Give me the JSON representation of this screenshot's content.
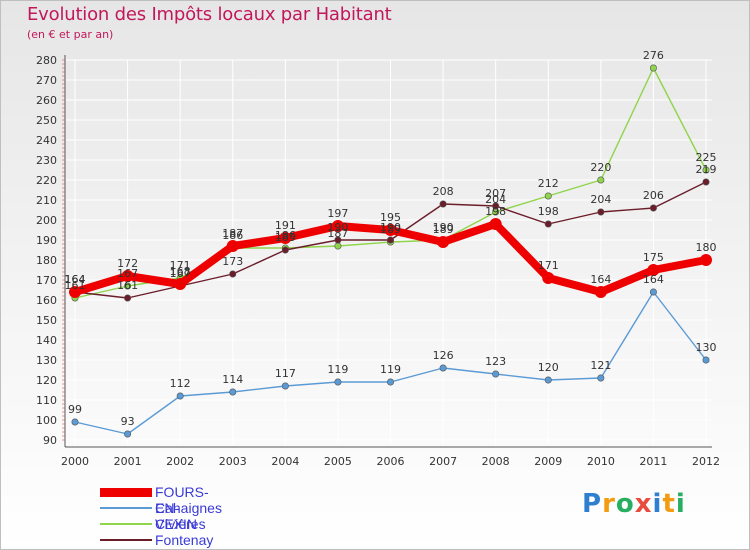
{
  "chart_data": {
    "type": "line",
    "title": "Evolution des Impôts locaux par Habitant",
    "subtitle": "(en € et par an)",
    "xlabel": "",
    "ylabel": "",
    "x": [
      "2000",
      "2001",
      "2002",
      "2003",
      "2004",
      "2005",
      "2006",
      "2007",
      "2008",
      "2009",
      "2010",
      "2011",
      "2012"
    ],
    "ylim": [
      90,
      280
    ],
    "yticks": [
      90,
      100,
      110,
      120,
      130,
      140,
      150,
      160,
      170,
      180,
      190,
      200,
      210,
      220,
      230,
      240,
      250,
      260,
      270,
      280
    ],
    "grid": true,
    "series": [
      {
        "name": "FOURS-EN-VEXIN",
        "color": "#ee0000",
        "values": [
          164,
          172,
          168,
          187,
          191,
          197,
          195,
          189,
          198,
          171,
          164,
          175,
          180
        ],
        "labels": [
          "164",
          "172",
          "168",
          "187",
          "191",
          "197",
          "195",
          "189",
          "198",
          "171",
          "164",
          "175",
          "180"
        ]
      },
      {
        "name": "Cahaignes",
        "color": "#5b9bd5",
        "values": [
          99,
          93,
          112,
          114,
          117,
          119,
          119,
          126,
          123,
          120,
          121,
          164,
          130
        ],
        "labels": [
          "99",
          "93",
          "112",
          "114",
          "117",
          "119",
          "119",
          "126",
          "123",
          "120",
          "121",
          "164",
          "130"
        ]
      },
      {
        "name": "Civières",
        "color": "#8fd44a",
        "values": [
          161,
          167,
          171,
          186,
          186,
          187,
          189,
          190,
          204,
          212,
          220,
          276,
          225
        ],
        "labels": [
          "161",
          "167",
          "171",
          "186",
          "186",
          "187",
          "189",
          "190",
          "204",
          "212",
          "220",
          "276",
          "225"
        ]
      },
      {
        "name": "Fontenay",
        "color": "#6b1d2a",
        "values": [
          164,
          161,
          167,
          173,
          185,
          190,
          190,
          208,
          207,
          198,
          204,
          206,
          219
        ],
        "labels": [
          "164",
          "161",
          "167",
          "173",
          "185",
          "190",
          "190",
          "208",
          "207",
          "198",
          "204",
          "206",
          "219"
        ]
      }
    ]
  },
  "legend": {
    "items": [
      {
        "label": "FOURS-EN-VEXIN",
        "color": "#ee0000"
      },
      {
        "label": "Cahaignes",
        "color": "#5b9bd5"
      },
      {
        "label": "Civières",
        "color": "#8fd44a"
      },
      {
        "label": "Fontenay",
        "color": "#6b1d2a"
      }
    ]
  },
  "logo": {
    "letters": [
      "P",
      "r",
      "o",
      "x",
      "i",
      "t",
      "i"
    ],
    "colors": [
      "#2f7fd1",
      "#f39c12",
      "#27ae60",
      "#e74c3c",
      "#2f7fd1",
      "#f39c12",
      "#27ae60"
    ]
  }
}
